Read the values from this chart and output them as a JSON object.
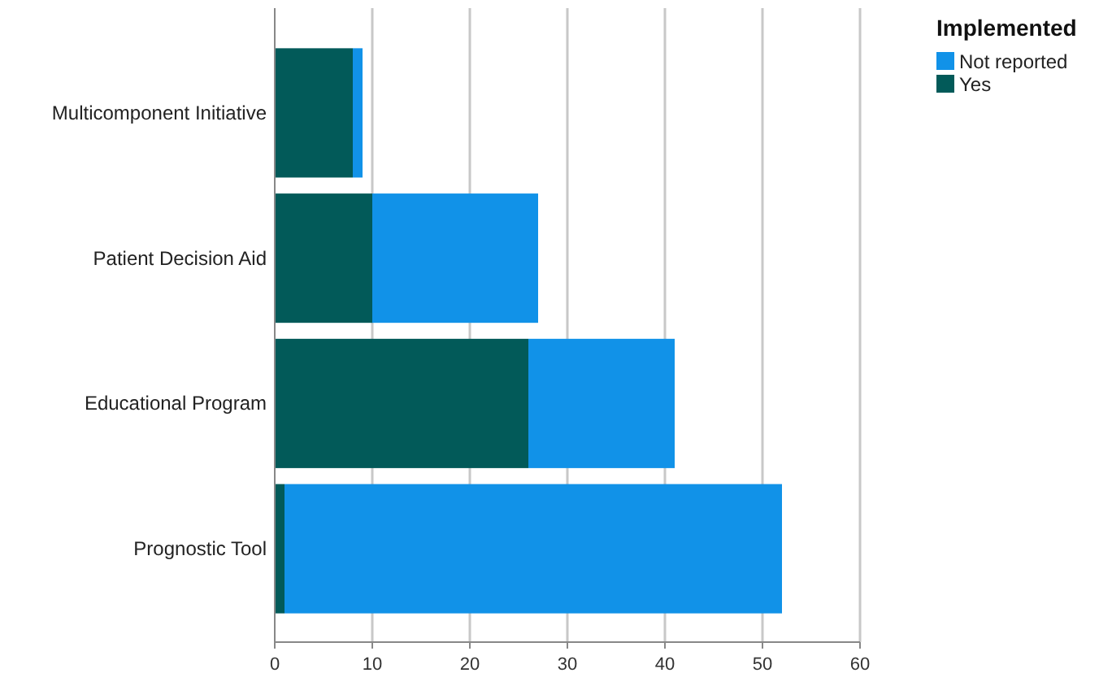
{
  "chart_data": {
    "type": "bar",
    "orientation": "horizontal",
    "stacked": true,
    "legend_title": "Implemented",
    "legend": "top right",
    "grid": "x",
    "categories": [
      "Multicomponent Initiative",
      "Patient Decision Aid",
      "Educational Program",
      "Prognostic Tool"
    ],
    "series": [
      {
        "name": "Yes",
        "color": "#025a59",
        "values": [
          8,
          10,
          26,
          1
        ]
      },
      {
        "name": "Not reported",
        "color": "#1192e8",
        "values": [
          1,
          17,
          15,
          51
        ]
      }
    ],
    "xlim": [
      0,
      60
    ],
    "xticks": [
      0,
      10,
      20,
      30,
      40,
      50,
      60
    ]
  }
}
